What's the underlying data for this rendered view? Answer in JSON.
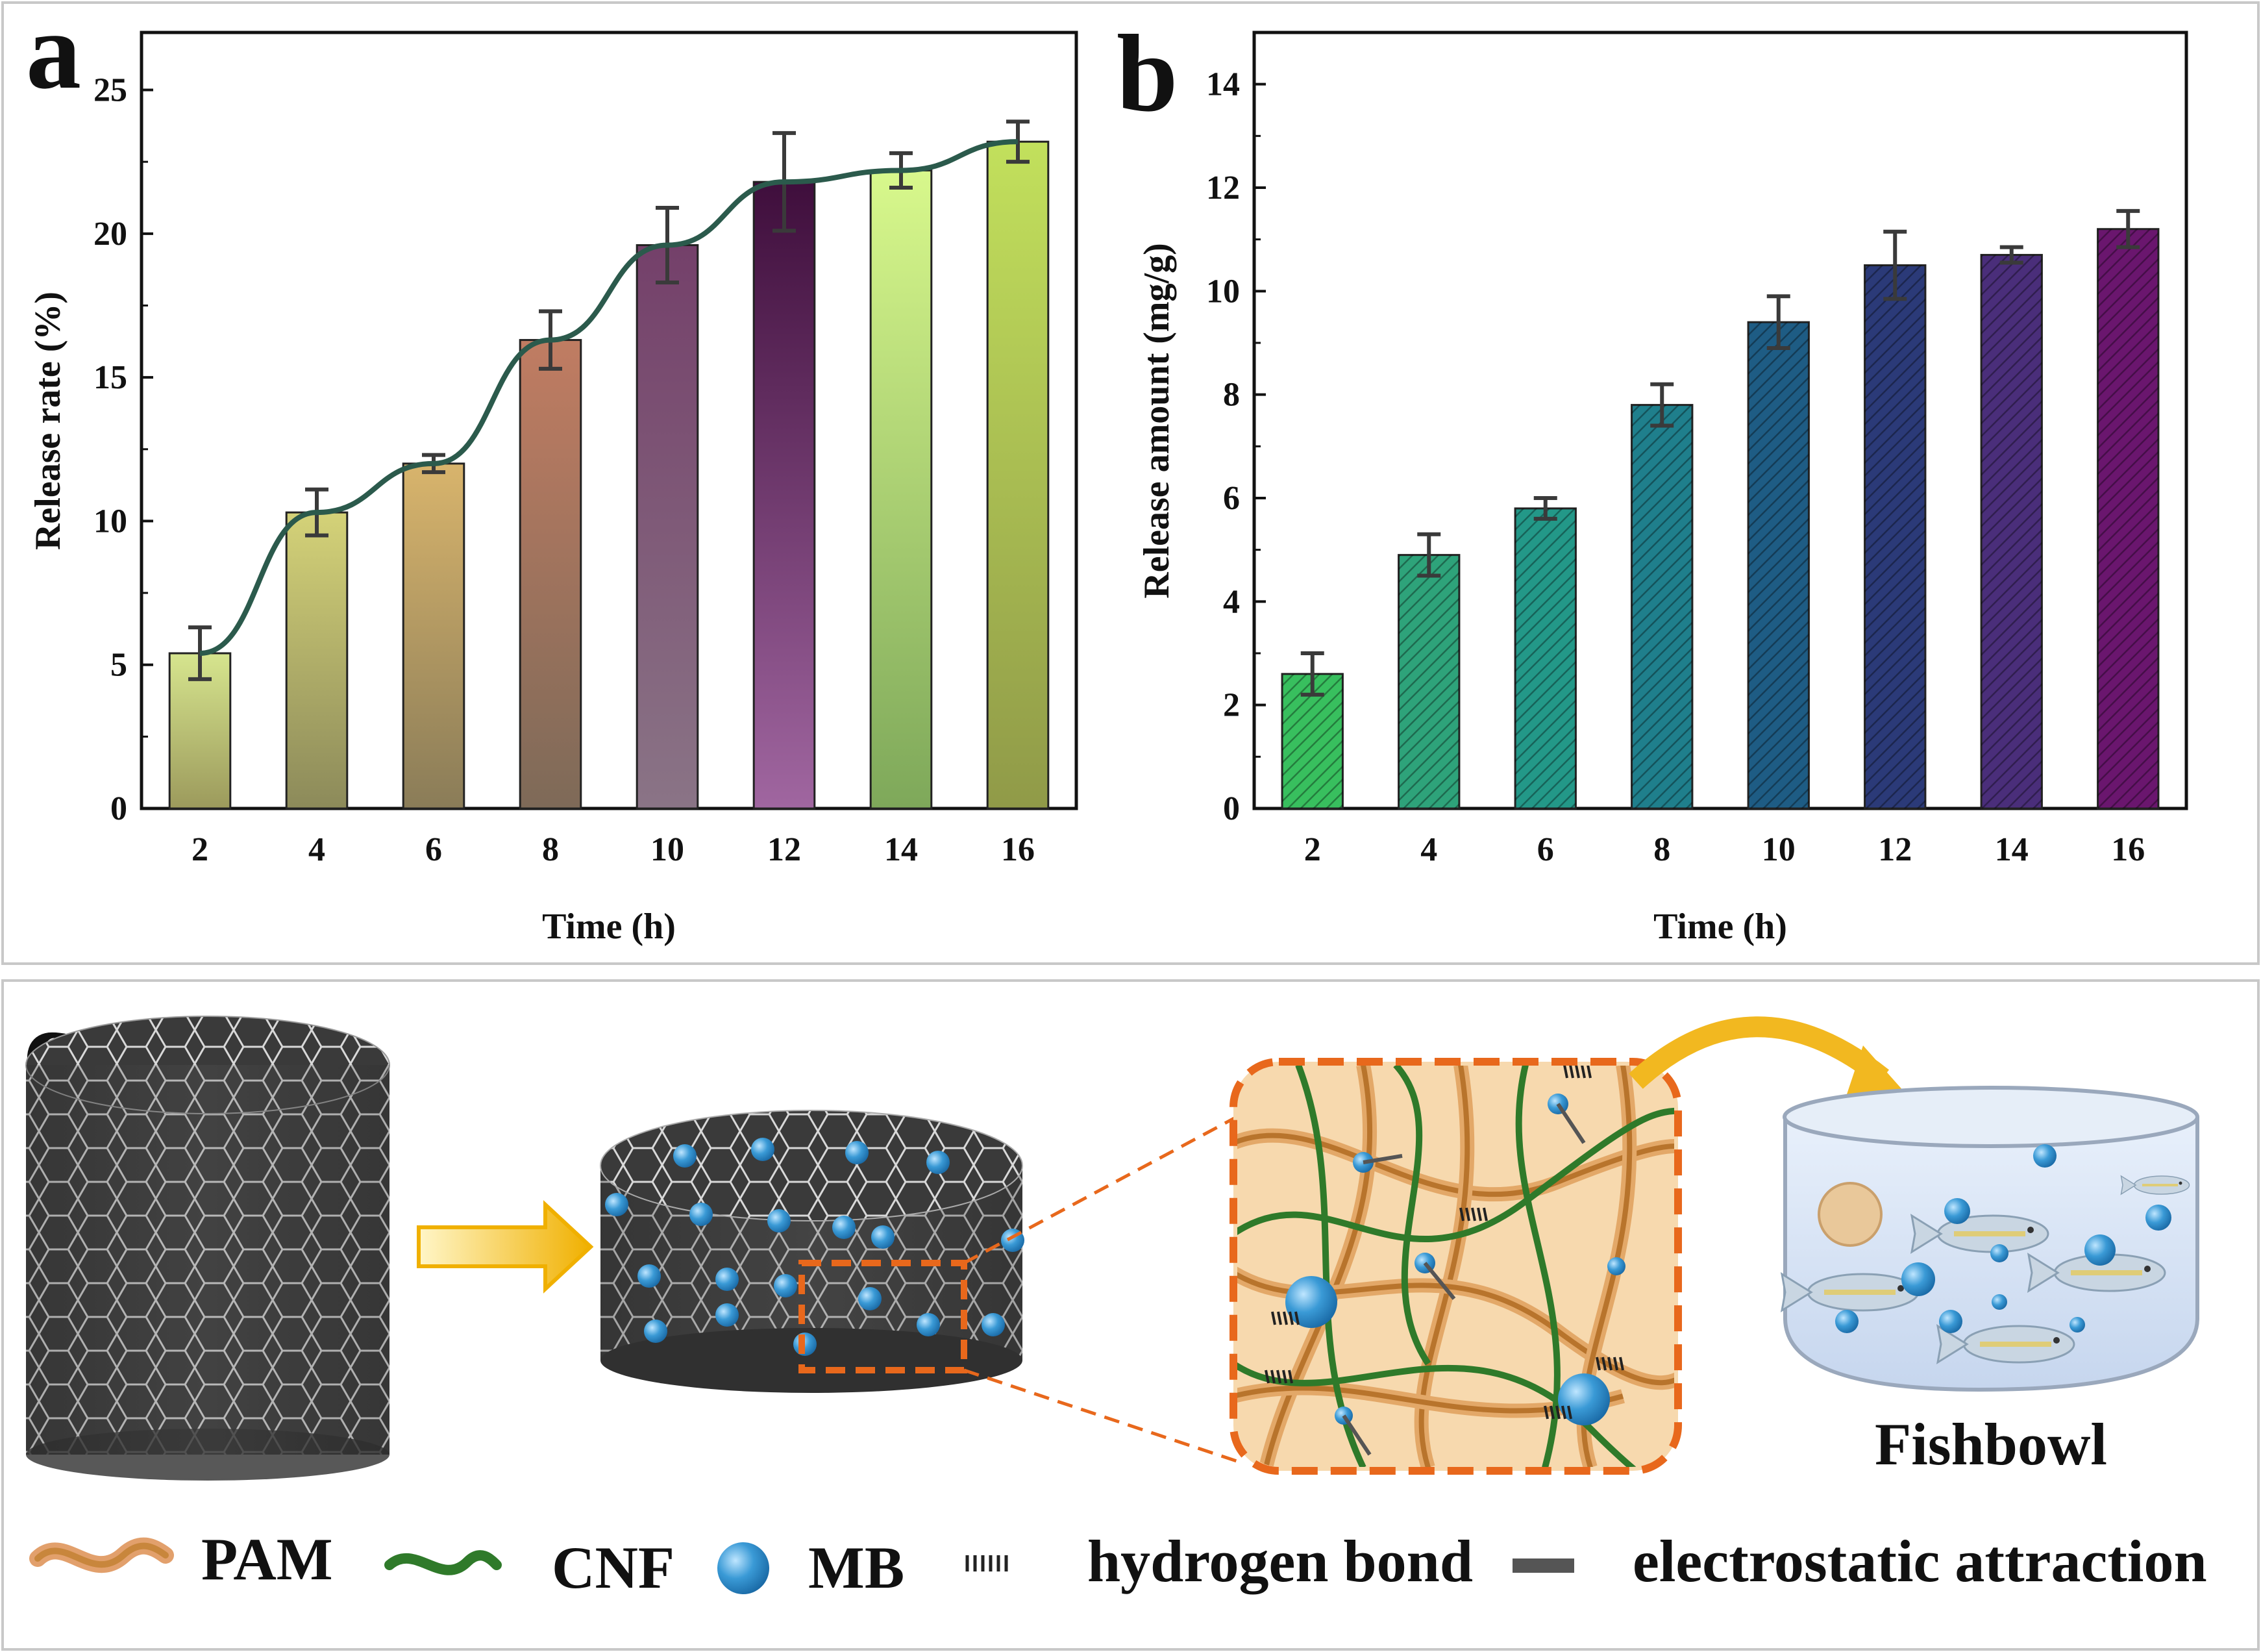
{
  "panels": {
    "a": {
      "letter": "a"
    },
    "b": {
      "letter": "b"
    },
    "c": {
      "letter": "c"
    }
  },
  "chart_data": [
    {
      "id": "a",
      "type": "bar",
      "overlay": "line",
      "title": "",
      "xlabel": "Time (h)",
      "ylabel": "Release rate (%)",
      "categories": [
        "2",
        "4",
        "6",
        "8",
        "10",
        "12",
        "14",
        "16"
      ],
      "values": [
        5.4,
        10.3,
        12.0,
        16.3,
        19.6,
        21.8,
        22.2,
        23.2
      ],
      "errors": [
        0.9,
        0.8,
        0.3,
        1.0,
        1.3,
        1.7,
        0.6,
        0.7
      ],
      "ylim": [
        0,
        27
      ],
      "yticks": [
        0,
        5,
        10,
        15,
        20,
        25
      ],
      "bar_colors": [
        [
          "#d6e58e",
          "#9c9a5c"
        ],
        [
          "#d4d278",
          "#8c8a5a"
        ],
        [
          "#d8b46c",
          "#8a7c58"
        ],
        [
          "#c07c62",
          "#7e6a58"
        ],
        [
          "#74406a",
          "#8a7486"
        ],
        [
          "#3f0e3c",
          "#a066a0"
        ],
        [
          "#d8f88c",
          "#7ea85a"
        ],
        [
          "#c2e05c",
          "#909a48"
        ]
      ],
      "line_color": "#2b5a4c"
    },
    {
      "id": "b",
      "type": "bar",
      "title": "",
      "xlabel": "Time (h)",
      "ylabel": "Release amount (mg/g)",
      "categories": [
        "2",
        "4",
        "6",
        "8",
        "10",
        "12",
        "14",
        "16"
      ],
      "values": [
        2.6,
        4.9,
        5.8,
        7.8,
        9.4,
        10.5,
        10.7,
        11.2
      ],
      "errors": [
        0.4,
        0.4,
        0.2,
        0.4,
        0.5,
        0.65,
        0.15,
        0.35
      ],
      "ylim": [
        0,
        15
      ],
      "yticks": [
        0,
        2,
        4,
        6,
        8,
        10,
        12,
        14
      ],
      "bar_colors": [
        "#38bf5e",
        "#2ea37a",
        "#239888",
        "#1f7f8c",
        "#1e5c84",
        "#2b3a78",
        "#4a2e7a",
        "#6a166e"
      ],
      "hatched": true
    }
  ],
  "schematic": {
    "title_fishbowl": "Fishbowl",
    "legend": [
      {
        "key": "pam",
        "label": "PAM"
      },
      {
        "key": "cnf",
        "label": "CNF"
      },
      {
        "key": "mb",
        "label": "MB"
      },
      {
        "key": "hbond",
        "label": "hydrogen bond"
      },
      {
        "key": "electro",
        "label": "electrostatic attraction"
      }
    ],
    "colors": {
      "pam": "#c8863c",
      "cnf": "#2f7a2a",
      "mb": "#3a92cc",
      "dashed_box": "#e8681c",
      "arrow": "#f2b820",
      "zoom_bg": "#f7d9ae"
    }
  }
}
